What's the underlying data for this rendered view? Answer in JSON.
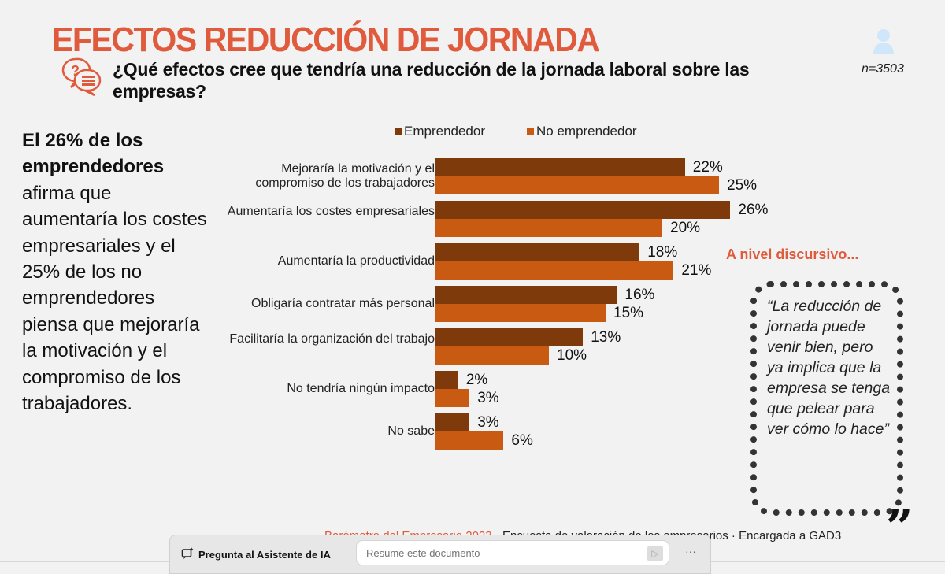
{
  "header": {
    "title": "EFECTOS REDUCCIÓN DE JORNADA",
    "question": "¿Qué efectos cree que tendría una reducción de la jornada laboral sobre las empresas?",
    "sample": "n=3503",
    "icons": [
      "question-chat-icon",
      "user-icon"
    ]
  },
  "summary": {
    "bold": "El 26% de los emprendedores",
    "rest": " afirma que aumentaría los costes empresariales y el 25% de los no emprendedores piensa que mejoraría la motivación y el compromiso de los trabajadores."
  },
  "chart_data": {
    "type": "bar",
    "orientation": "horizontal",
    "categories": [
      "Mejoraría la motivación y el compromiso de los trabajadores",
      "Aumentaría los costes empresariales",
      "Aumentaría la productividad",
      "Obligaría contratar más personal",
      "Facilitaría la organización del trabajo",
      "No tendría ningún impacto",
      "No sabe"
    ],
    "series": [
      {
        "name": "Emprendedor",
        "color": "#7f3a0c",
        "values": [
          22,
          26,
          18,
          16,
          13,
          2,
          3
        ]
      },
      {
        "name": "No emprendedor",
        "color": "#c95a12",
        "values": [
          25,
          20,
          21,
          15,
          10,
          3,
          6
        ]
      }
    ],
    "unit": "%",
    "legend": "top",
    "grid": false
  },
  "aside": {
    "heading": "A nivel discursivo...",
    "quote": "“La reducción de jornada puede venir bien, pero ya implica que la empresa se tenga que pelear para ver cómo lo hace”",
    "quote_mark": "„"
  },
  "source": {
    "highlight": "Barómetro del Empresario 2023",
    "rest": " · Encuesta de valoración de los empresarios · Encargada a GAD3"
  },
  "assistant": {
    "label": "Pregunta al Asistente de IA",
    "placeholder": "Resume este documento",
    "more": "···"
  },
  "colors": {
    "accent": "#e05a3c"
  }
}
